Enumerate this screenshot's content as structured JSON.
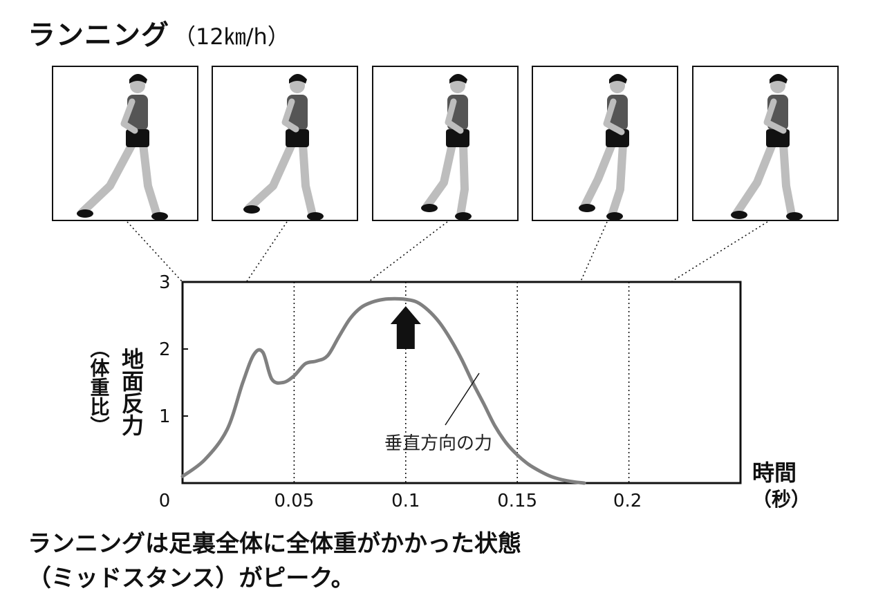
{
  "header": {
    "title": "ランニング",
    "subtitle": "（12㎞/h）"
  },
  "panels": [
    {
      "icon": "runner-figure-icon"
    },
    {
      "icon": "runner-figure-icon"
    },
    {
      "icon": "runner-figure-icon"
    },
    {
      "icon": "runner-figure-icon"
    },
    {
      "icon": "runner-figure-icon"
    }
  ],
  "chart_data": {
    "type": "line",
    "ylabel_main": "地面反力",
    "ylabel_sub": "（体重比）",
    "xlabel_main": "時間",
    "xlabel_sub": "（秒）",
    "x_ticks": [
      "0",
      "0.05",
      "0.1",
      "0.15",
      "0.2"
    ],
    "y_ticks": [
      "1",
      "2",
      "3"
    ],
    "xlim": [
      0,
      0.25
    ],
    "ylim": [
      0,
      3
    ],
    "series": [
      {
        "name": "垂直方向の力",
        "color": "#808080",
        "x": [
          0,
          0.01,
          0.02,
          0.027,
          0.032,
          0.036,
          0.04,
          0.045,
          0.05,
          0.055,
          0.06,
          0.065,
          0.07,
          0.075,
          0.08,
          0.085,
          0.09,
          0.095,
          0.1,
          0.105,
          0.11,
          0.115,
          0.12,
          0.125,
          0.13,
          0.135,
          0.14,
          0.145,
          0.15,
          0.155,
          0.16,
          0.165,
          0.17,
          0.175,
          0.18
        ],
        "y": [
          0.1,
          0.35,
          0.8,
          1.5,
          1.92,
          1.95,
          1.55,
          1.5,
          1.6,
          1.78,
          1.82,
          1.9,
          2.18,
          2.45,
          2.62,
          2.7,
          2.74,
          2.75,
          2.74,
          2.7,
          2.58,
          2.4,
          2.15,
          1.85,
          1.5,
          1.18,
          0.85,
          0.6,
          0.42,
          0.28,
          0.18,
          0.1,
          0.05,
          0.02,
          0
        ]
      }
    ],
    "dotted_lines_x": [
      0.05,
      0.1,
      0.15,
      0.2
    ],
    "peak_arrow_x": 0.1,
    "annotation": "垂直方向の力"
  },
  "caption": {
    "line1": "ランニングは足裏全体に全体重がかかった状態",
    "line2": "（ミッドスタンス）がピーク。"
  }
}
